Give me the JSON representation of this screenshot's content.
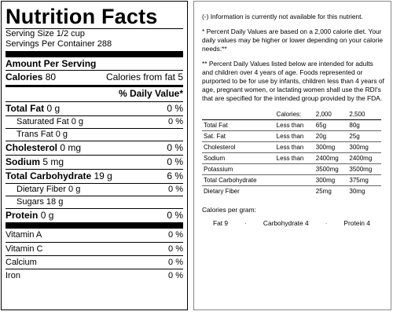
{
  "label": {
    "title": "Nutrition Facts",
    "serving_size": "Serving Size 1/2 cup",
    "servings_per_container": "Servings Per Container 288",
    "amount_per_serving": "Amount Per Serving",
    "calories_label": "Calories",
    "calories_value": "80",
    "calories_fat": "Calories from fat 5",
    "daily_value_header": "% Daily Value*",
    "nutrients": [
      {
        "name": "Total Fat",
        "amount": "0 g",
        "dv": "0 %"
      },
      {
        "name": "Saturated Fat",
        "amount": "0 g",
        "dv": "0 %"
      },
      {
        "name": "Trans Fat",
        "amount": "0 g",
        "dv": ""
      },
      {
        "name": "Cholesterol",
        "amount": "0 mg",
        "dv": "0 %"
      },
      {
        "name": "Sodium",
        "amount": "5 mg",
        "dv": "0 %"
      },
      {
        "name": "Total Carbohydrate",
        "amount": "19 g",
        "dv": "6 %"
      },
      {
        "name": "Dietary Fiber",
        "amount": "0 g",
        "dv": "0 %"
      },
      {
        "name": "Sugars",
        "amount": "18 g",
        "dv": ""
      },
      {
        "name": "Protein",
        "amount": "0 g",
        "dv": "0 %"
      }
    ],
    "vitamins": [
      {
        "name": "Vitamin A",
        "dv": "0 %"
      },
      {
        "name": "Vitamin C",
        "dv": "0 %"
      },
      {
        "name": "Calcium",
        "dv": "0 %"
      },
      {
        "name": "Iron",
        "dv": "0 %"
      }
    ]
  },
  "info": {
    "note1": "(-) Information is currently not available for this nutrient.",
    "note2": "* Percent Daily Values are based on a 2,000 calorie diet. Your daily values may be higher or lower depending on your calorie needs:**",
    "note3": "** Percent Daily Values listed below are intended for adults and children over 4 years of age. Foods represented or purported to be for use by infants, children less than 4 years of age, pregnant women, or lactating women shall use the RDI's that are specified for the intended group provided by the FDA.",
    "table_header": [
      "",
      "Calories:",
      "2,000",
      "2,500"
    ],
    "table_rows": [
      [
        "Total Fat",
        "Less than",
        "65g",
        "80g"
      ],
      [
        "Sat. Fat",
        "Less than",
        "20g",
        "25g"
      ],
      [
        "Cholesterol",
        "Less than",
        "300mg",
        "300mg"
      ],
      [
        "Sodium",
        "Less than",
        "2400mg",
        "2400mg"
      ],
      [
        "Potassium",
        "",
        "3500mg",
        "3500mg"
      ],
      [
        "Total Carbohydrate",
        "",
        "300mg",
        "375mg"
      ],
      [
        "Dietary Fiber",
        "",
        "25mg",
        "30mg"
      ]
    ],
    "calories_per_gram_label": "Calories per gram:",
    "calories_per_gram": [
      "Fat 9",
      "Carbohydrate 4",
      "Protein 4"
    ],
    "separator": "·"
  }
}
